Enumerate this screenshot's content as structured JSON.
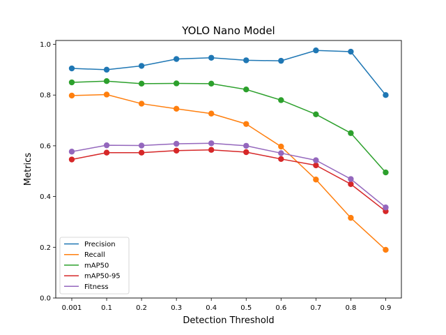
{
  "chart_data": {
    "type": "line",
    "title": "YOLO Nano Model",
    "xlabel": "Detection Threshold",
    "ylabel": "Metrics",
    "categories": [
      "0.001",
      "0.1",
      "0.2",
      "0.3",
      "0.4",
      "0.5",
      "0.6",
      "0.7",
      "0.8",
      "0.9"
    ],
    "ylim": [
      0.0,
      1.0
    ],
    "yticks": [
      "0.0",
      "0.2",
      "0.4",
      "0.6",
      "0.8",
      "1.0"
    ],
    "grid": false,
    "legend_position": "lower-left",
    "series": [
      {
        "name": "Precision",
        "color": "#1f77b4",
        "values": [
          0.905,
          0.9,
          0.915,
          0.942,
          0.947,
          0.937,
          0.935,
          0.976,
          0.971,
          0.8
        ]
      },
      {
        "name": "Recall",
        "color": "#ff7f0e",
        "values": [
          0.798,
          0.802,
          0.766,
          0.746,
          0.727,
          0.686,
          0.597,
          0.467,
          0.316,
          0.19
        ]
      },
      {
        "name": "mAP50",
        "color": "#2ca02c",
        "values": [
          0.85,
          0.855,
          0.845,
          0.846,
          0.845,
          0.822,
          0.78,
          0.724,
          0.65,
          0.495
        ]
      },
      {
        "name": "mAP50-95",
        "color": "#d62728",
        "values": [
          0.546,
          0.573,
          0.573,
          0.581,
          0.584,
          0.575,
          0.548,
          0.523,
          0.449,
          0.342
        ]
      },
      {
        "name": "Fitness",
        "color": "#9467bd",
        "values": [
          0.577,
          0.602,
          0.601,
          0.608,
          0.61,
          0.6,
          0.571,
          0.543,
          0.469,
          0.357
        ]
      }
    ]
  }
}
